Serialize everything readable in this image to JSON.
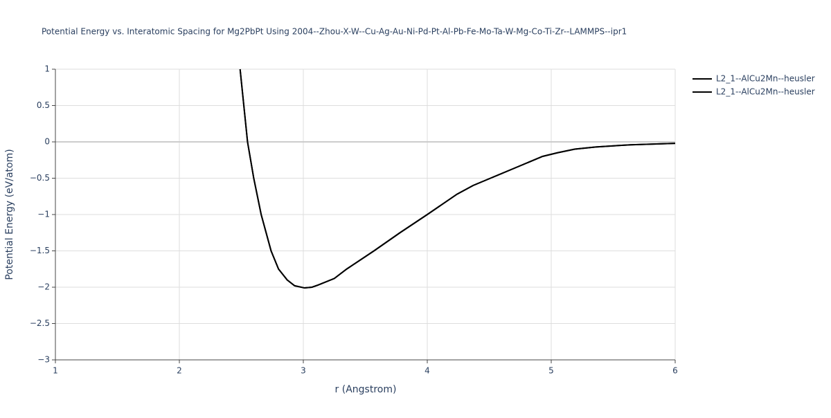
{
  "chart_data": {
    "type": "line",
    "title": "Potential Energy vs. Interatomic Spacing for Mg2PbPt Using 2004--Zhou-X-W--Cu-Ag-Au-Ni-Pd-Pt-Al-Pb-Fe-Mo-Ta-W-Mg-Co-Ti-Zr--LAMMPS--ipr1",
    "x_label": "r (Angstrom)",
    "y_label": "Potential Energy (eV/atom)",
    "xlim": [
      1,
      6
    ],
    "ylim": [
      -3,
      1
    ],
    "xticks": [
      1,
      2,
      3,
      4,
      5,
      6
    ],
    "yticks": [
      {
        "value": 1,
        "label": "1"
      },
      {
        "value": 0.5,
        "label": "0.5"
      },
      {
        "value": 0,
        "label": "0"
      },
      {
        "value": -0.5,
        "label": "−0.5"
      },
      {
        "value": -1,
        "label": "−1"
      },
      {
        "value": -1.5,
        "label": "−1.5"
      },
      {
        "value": -2,
        "label": "−2"
      },
      {
        "value": -2.5,
        "label": "−2.5"
      },
      {
        "value": -3,
        "label": "−3"
      }
    ],
    "grid": true,
    "legend": "top-right",
    "series": [
      {
        "name": "L2_1--AlCu2Mn--heusler",
        "color": "#000000",
        "x": [
          2.49,
          2.55,
          2.6,
          2.66,
          2.74,
          2.8,
          2.87,
          2.93,
          3.01,
          3.07,
          3.12,
          3.25,
          3.35,
          3.57,
          3.78,
          4.0,
          4.24,
          4.37,
          4.51,
          4.72,
          4.93,
          5.05,
          5.19,
          5.36,
          5.64,
          6.0
        ],
        "values": [
          1.0,
          0.0,
          -0.5,
          -1.0,
          -1.5,
          -1.75,
          -1.9,
          -1.98,
          -2.01,
          -2.0,
          -1.97,
          -1.88,
          -1.75,
          -1.5,
          -1.25,
          -1.0,
          -0.72,
          -0.6,
          -0.5,
          -0.35,
          -0.2,
          -0.15,
          -0.1,
          -0.07,
          -0.04,
          -0.02
        ]
      },
      {
        "name": "L2_1--AlCu2Mn--heusler",
        "color": "#000000",
        "x": [
          2.49,
          2.55,
          2.6,
          2.66,
          2.74,
          2.8,
          2.87,
          2.93,
          3.01,
          3.07,
          3.12,
          3.25,
          3.35,
          3.57,
          3.78,
          4.0,
          4.24,
          4.37,
          4.51,
          4.72,
          4.93,
          5.05,
          5.19,
          5.36,
          5.64,
          6.0
        ],
        "values": [
          1.0,
          0.0,
          -0.5,
          -1.0,
          -1.5,
          -1.75,
          -1.9,
          -1.98,
          -2.01,
          -2.0,
          -1.97,
          -1.88,
          -1.75,
          -1.5,
          -1.25,
          -1.0,
          -0.72,
          -0.6,
          -0.5,
          -0.35,
          -0.2,
          -0.15,
          -0.1,
          -0.07,
          -0.04,
          -0.02
        ]
      }
    ]
  }
}
